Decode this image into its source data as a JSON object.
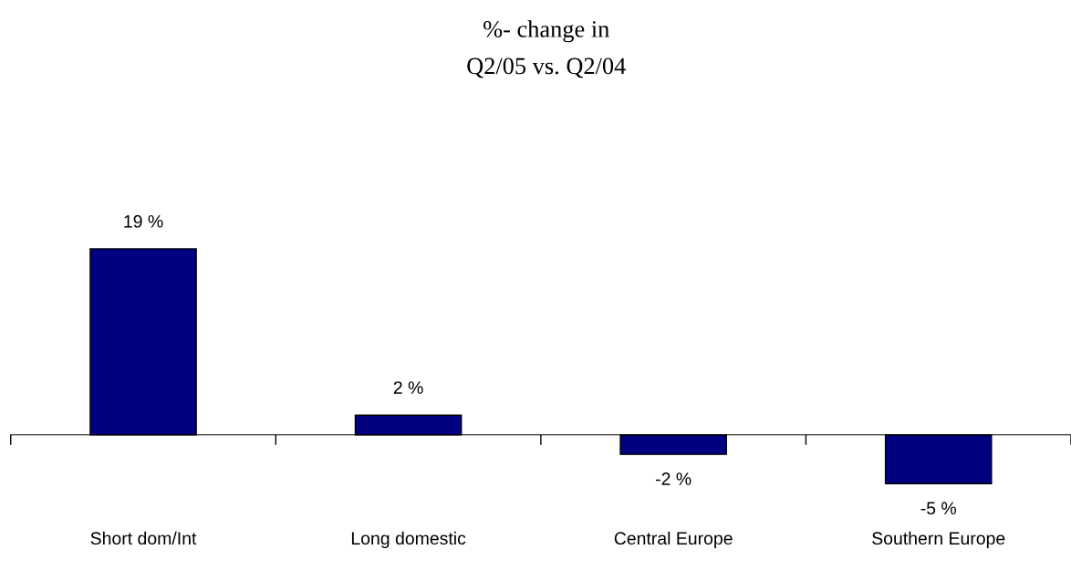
{
  "chart_data": {
    "type": "bar",
    "title": "%- change in\nQ2/05 vs. Q2/04",
    "categories": [
      "Short dom/Int",
      "Long domestic",
      "Central Europe",
      "Southern Europe"
    ],
    "values": [
      19,
      2,
      -2,
      -5
    ],
    "value_labels": [
      "19 %",
      "2 %",
      "-2 %",
      "-5 %"
    ],
    "color": "#000080",
    "grid": false,
    "legend": false
  }
}
